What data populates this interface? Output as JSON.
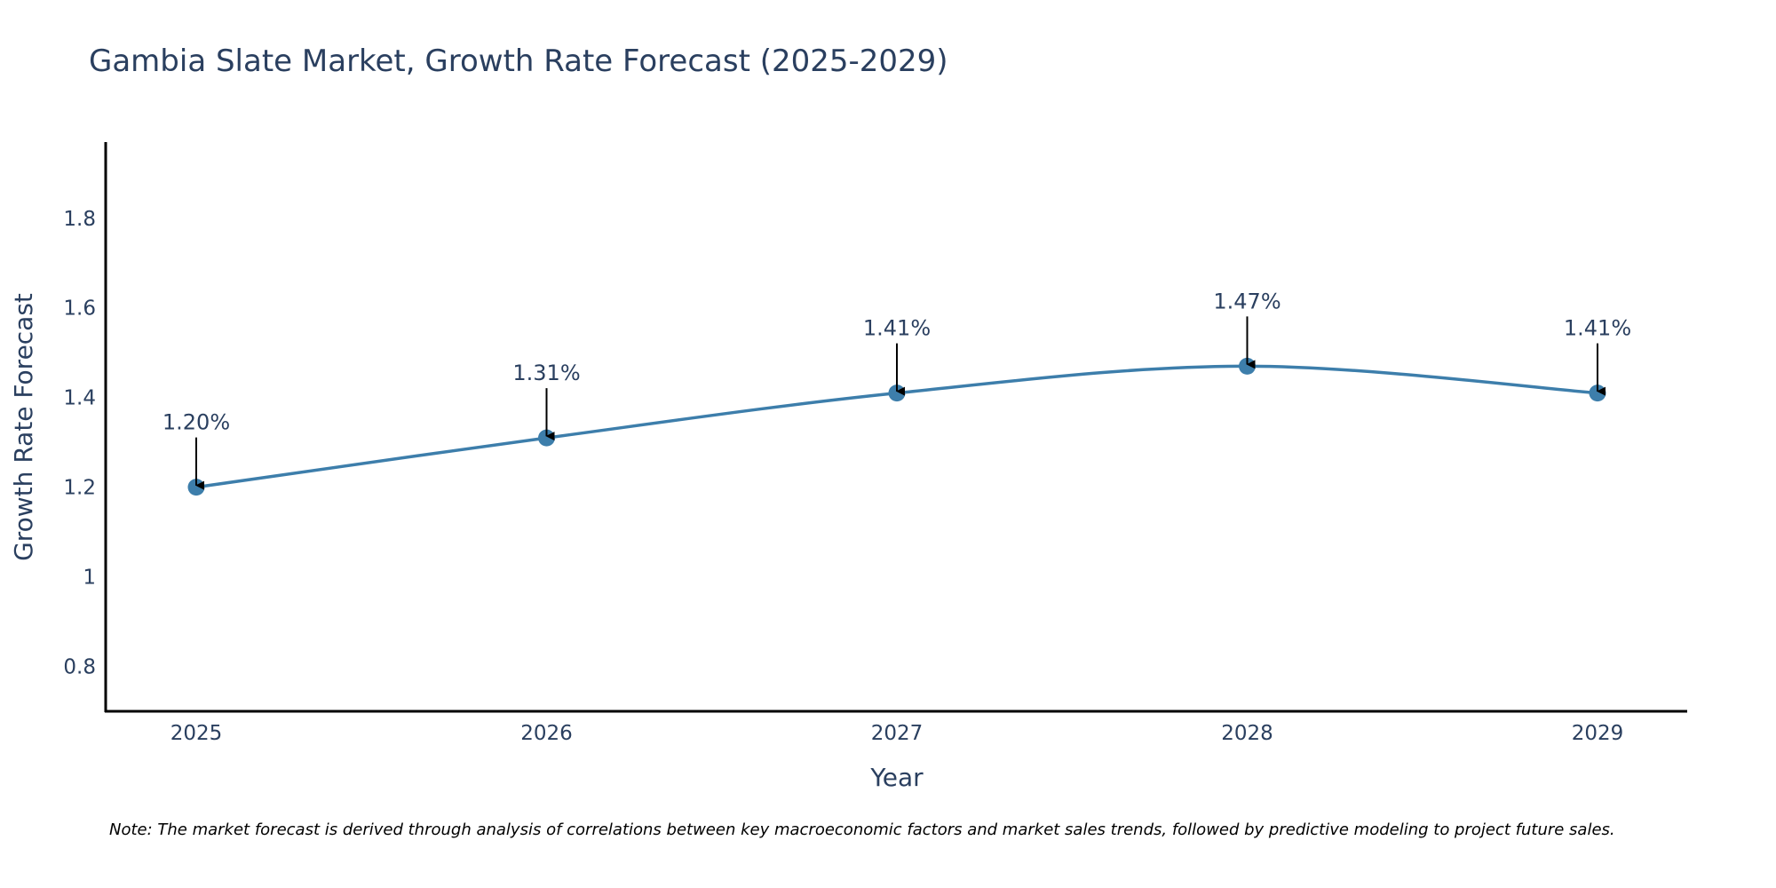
{
  "chart_data": {
    "type": "line",
    "title": "Gambia Slate Market, Growth Rate Forecast (2025-2029)",
    "xlabel": "Year",
    "ylabel": "Growth Rate Forecast",
    "categories": [
      "2025",
      "2026",
      "2027",
      "2028",
      "2029"
    ],
    "series": [
      {
        "name": "Growth Rate Forecast",
        "values": [
          1.2,
          1.31,
          1.41,
          1.47,
          1.41
        ],
        "labels": [
          "1.20%",
          "1.31%",
          "1.41%",
          "1.47%",
          "1.41%"
        ]
      }
    ],
    "yticks": [
      0.8,
      1,
      1.2,
      1.4,
      1.6,
      1.8
    ],
    "ytick_labels": [
      "0.8",
      "1",
      "1.2",
      "1.4",
      "1.6",
      "1.8"
    ],
    "ylim": [
      0.7,
      1.97
    ],
    "grid": false,
    "line_color": "#3d7eab",
    "marker_color": "#3d7eab",
    "annotation_arrow_color": "#000000",
    "note": "Note: The market forecast is derived through analysis of correlations between key macroeconomic factors and market sales trends, followed by predictive modeling to project future sales."
  }
}
